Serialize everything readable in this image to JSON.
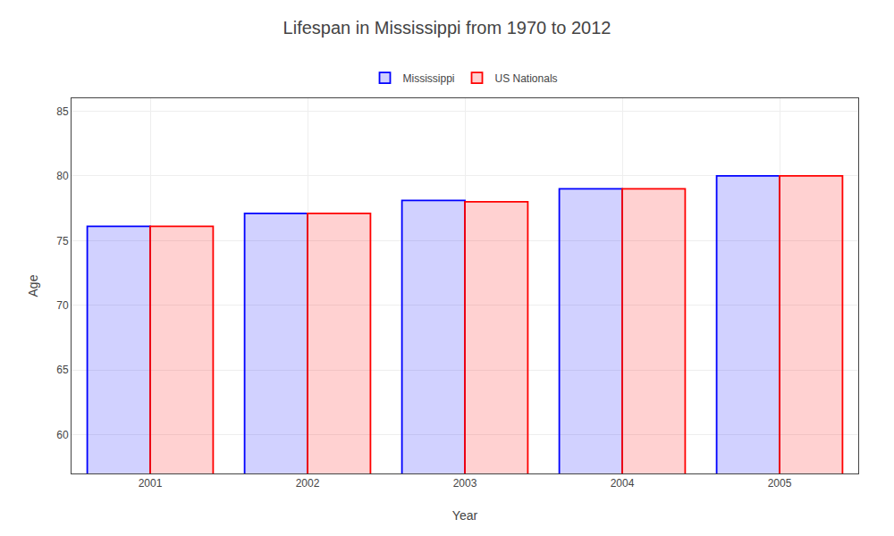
{
  "chart_data": {
    "type": "bar",
    "title": "Lifespan in Mississippi from 1970 to 2012",
    "x_label": "Year",
    "y_label": "Age",
    "categories": [
      "2001",
      "2002",
      "2003",
      "2004",
      "2005"
    ],
    "series": [
      {
        "name": "Mississippi",
        "color": "#0000ff",
        "values": [
          76.1,
          77.1,
          78.1,
          79.0,
          80.0
        ]
      },
      {
        "name": "US Nationals",
        "color": "#ff0000",
        "values": [
          76.1,
          77.1,
          78.0,
          79.0,
          80.0
        ]
      }
    ],
    "ylim": [
      57,
      86
    ],
    "yticks": [
      60,
      65,
      70,
      75,
      80,
      85
    ],
    "grid": true,
    "legend": "top"
  }
}
